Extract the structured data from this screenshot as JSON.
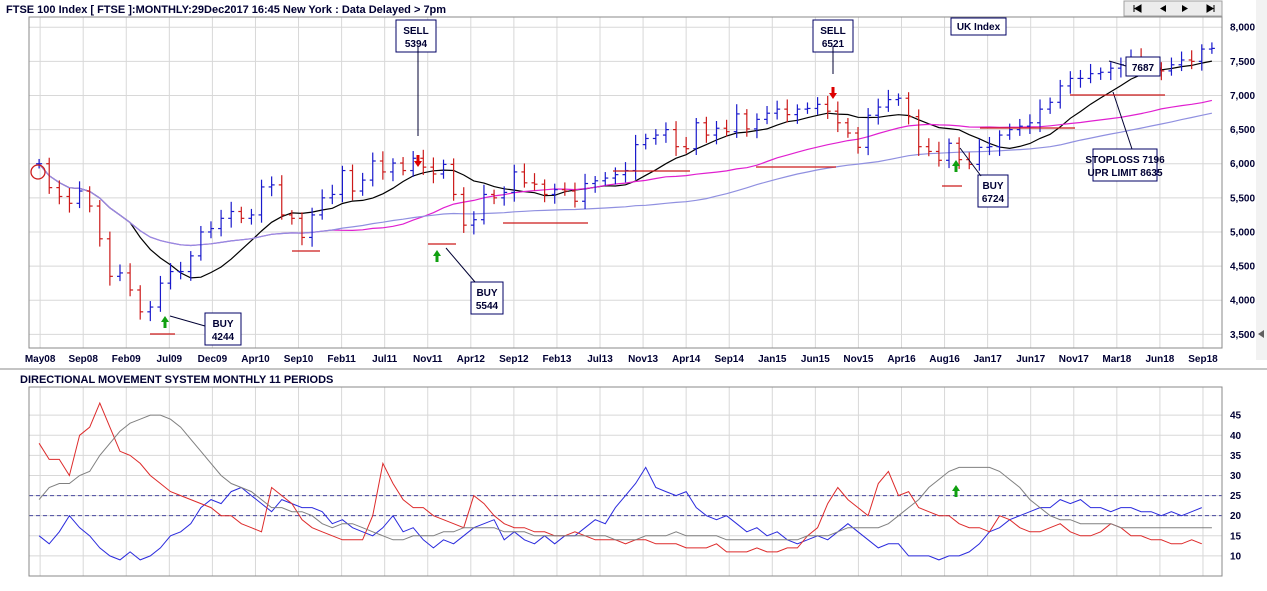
{
  "header": {
    "title": "FTSE 100 Index [ FTSE ]:MONTHLY:29Dec2017 16:45 New York : Data Delayed > 7pm",
    "index_label": "UK Index"
  },
  "nav": {
    "buttons": [
      "first",
      "previous",
      "next",
      "last"
    ]
  },
  "lower_panel": {
    "title": "DIRECTIONAL MOVEMENT SYSTEM MONTHLY 11 PERIODS"
  },
  "colors": {
    "grid": "#d8d8d8",
    "frame": "#8a8a8a",
    "price_up": "#1a1acc",
    "price_down": "#cc1a1a",
    "ma_short": "#000000",
    "ma_mid": "#e020d0",
    "ma_long": "#9090e0",
    "plus_di": "#2b2bdd",
    "minus_di": "#dd2b2b",
    "adx": "#808080",
    "buy_arrow": "#10a010",
    "sell_arrow": "#dd0000",
    "box_border": "#000066"
  },
  "chart_data": [
    {
      "type": "line",
      "title": "FTSE 100 Index [ FTSE ]:MONTHLY:29Dec2017 16:45 New York : Data Delayed > 7pm",
      "x_tick_labels": [
        "May08",
        "Sep08",
        "Feb09",
        "Jul09",
        "Dec09",
        "Apr10",
        "Sep10",
        "Feb11",
        "Jul11",
        "Nov11",
        "Apr12",
        "Sep12",
        "Feb13",
        "Jul13",
        "Nov13",
        "Apr14",
        "Sep14",
        "Jan15",
        "Jun15",
        "Nov15",
        "Apr16",
        "Aug16",
        "Jan17",
        "Jun17",
        "Nov17",
        "Mar18",
        "Jun18",
        "Sep18"
      ],
      "y_ticks": [
        3500,
        4000,
        4500,
        5000,
        5500,
        6000,
        6500,
        7000,
        7500,
        8000
      ],
      "y_tick_labels": [
        "3,500",
        "4,000",
        "4,500",
        "5,000",
        "5,500",
        "6,000",
        "6,500",
        "7,000",
        "7,500",
        "8,000"
      ],
      "ylim": [
        3300,
        8150
      ],
      "x_range_months": [
        0,
        118
      ],
      "series": [
        {
          "kind": "ohlc_close",
          "values": [
            6000,
            5650,
            5520,
            5420,
            5600,
            5380,
            4900,
            4350,
            4400,
            4150,
            3830,
            3900,
            4250,
            4420,
            4420,
            4650,
            5000,
            5050,
            5200,
            5300,
            5200,
            5250,
            5660,
            5690,
            5250,
            5200,
            4920,
            5250,
            5500,
            5550,
            5900,
            5600,
            5760,
            6040,
            5880,
            6010,
            5900,
            6080,
            5950,
            5850,
            5990,
            5550,
            5100,
            5180,
            5550,
            5500,
            5580,
            5880,
            5720,
            5700,
            5550,
            5620,
            5600,
            5450,
            5710,
            5750,
            5790,
            5840,
            5900,
            6280,
            6370,
            6420,
            6500,
            6250,
            6220,
            6600,
            6420,
            6520,
            6470,
            6730,
            6510,
            6650,
            6740,
            6800,
            6720,
            6800,
            6810,
            6870,
            6770,
            6600,
            6450,
            6240,
            6710,
            6830,
            6940,
            6960,
            6690,
            6250,
            6180,
            6050,
            6300,
            6060,
            5990,
            6240,
            6250,
            6420,
            6500,
            6550,
            6600,
            6800,
            6900,
            7140,
            7250,
            7250,
            7320,
            7340,
            7400,
            7450,
            7550,
            7440,
            7400,
            7360,
            7450,
            7520,
            7500,
            7680,
            7690
          ]
        }
      ],
      "moving_average_labels": [],
      "annotations": [
        {
          "text": [
            "SELL",
            "5394"
          ]
        },
        {
          "text": [
            "SELL",
            "6521"
          ]
        },
        {
          "text": [
            "BUY",
            "4244"
          ]
        },
        {
          "text": [
            "BUY",
            "5544"
          ]
        },
        {
          "text": [
            "BUY",
            "6724"
          ]
        },
        {
          "text": [
            "7687"
          ]
        },
        {
          "text": [
            "STOPLOSS 7196",
            "UPR LIMIT 8635"
          ]
        }
      ]
    },
    {
      "type": "line",
      "title": "DIRECTIONAL MOVEMENT SYSTEM MONTHLY 11 PERIODS",
      "y_ticks": [
        10,
        15,
        20,
        25,
        30,
        35,
        40,
        45
      ],
      "ylim": [
        5,
        52
      ],
      "reference_lines": [
        20,
        25
      ],
      "series": [
        {
          "kind": "plus_di",
          "values": [
            15,
            13,
            16,
            20,
            17,
            15,
            12,
            10,
            9,
            11,
            9,
            10,
            12,
            15,
            16,
            18,
            22,
            24,
            23,
            26,
            27,
            25,
            23,
            21,
            24,
            23,
            22,
            22,
            21,
            18,
            19,
            17,
            16,
            15,
            17,
            20,
            16,
            17,
            14,
            12,
            14,
            13,
            15,
            17,
            18,
            19,
            14,
            16,
            14,
            13,
            15,
            13,
            15,
            15,
            17,
            19,
            18,
            22,
            25,
            28,
            32,
            27,
            26,
            25,
            26,
            22,
            20,
            19,
            20,
            18,
            16,
            17,
            15,
            16,
            14,
            13,
            14,
            15,
            14,
            16,
            18,
            16,
            14,
            12,
            13,
            13,
            10,
            10,
            10,
            9,
            10,
            10,
            11,
            13,
            16,
            17,
            19,
            20,
            21,
            22,
            22,
            24,
            23,
            24,
            22,
            22,
            21,
            22,
            22,
            21,
            21,
            20,
            21,
            20,
            21,
            22
          ]
        },
        {
          "kind": "minus_di",
          "values": [
            38,
            34,
            34,
            30,
            40,
            42,
            48,
            42,
            36,
            35,
            33,
            30,
            28,
            26,
            25,
            24,
            23,
            22,
            20,
            20,
            18,
            17,
            16,
            27,
            25,
            23,
            19,
            17,
            16,
            15,
            14,
            14,
            14,
            20,
            33,
            28,
            24,
            22,
            22,
            20,
            19,
            18,
            17,
            25,
            23,
            20,
            18,
            17,
            17,
            16,
            16,
            15,
            15,
            16,
            15,
            14,
            14,
            14,
            13,
            14,
            14,
            13,
            13,
            13,
            12,
            12,
            12,
            13,
            11,
            11,
            11,
            12,
            11,
            11,
            12,
            12,
            15,
            17,
            23,
            27,
            24,
            22,
            20,
            28,
            31,
            25,
            26,
            22,
            21,
            20,
            20,
            18,
            17,
            17,
            16,
            20,
            19,
            17,
            16,
            16,
            17,
            18,
            16,
            15,
            15,
            16,
            18,
            17,
            15,
            15,
            14,
            14,
            13,
            13,
            14,
            13
          ]
        },
        {
          "kind": "adx",
          "values": [
            24,
            27,
            28,
            28,
            30,
            31,
            35,
            38,
            41,
            43,
            44,
            45,
            45,
            44,
            42,
            39,
            36,
            33,
            30,
            28,
            27,
            26,
            24,
            22,
            22,
            21,
            21,
            20,
            18,
            17,
            18,
            18,
            17,
            16,
            15,
            14,
            14,
            15,
            15,
            15,
            16,
            16,
            17,
            17,
            17,
            17,
            16,
            16,
            16,
            15,
            15,
            15,
            15,
            15,
            15,
            15,
            15,
            14,
            14,
            14,
            15,
            15,
            15,
            16,
            15,
            15,
            15,
            15,
            14,
            14,
            14,
            14,
            14,
            14,
            14,
            14,
            15,
            15,
            15,
            16,
            17,
            17,
            17,
            17,
            18,
            20,
            22,
            24,
            27,
            29,
            31,
            32,
            32,
            32,
            32,
            31,
            29,
            27,
            24,
            22,
            20,
            19,
            19,
            18,
            18,
            18,
            18,
            17,
            17,
            17,
            17,
            17,
            17,
            17,
            17,
            17,
            17
          ]
        }
      ],
      "signal_arrow": "buy"
    }
  ]
}
